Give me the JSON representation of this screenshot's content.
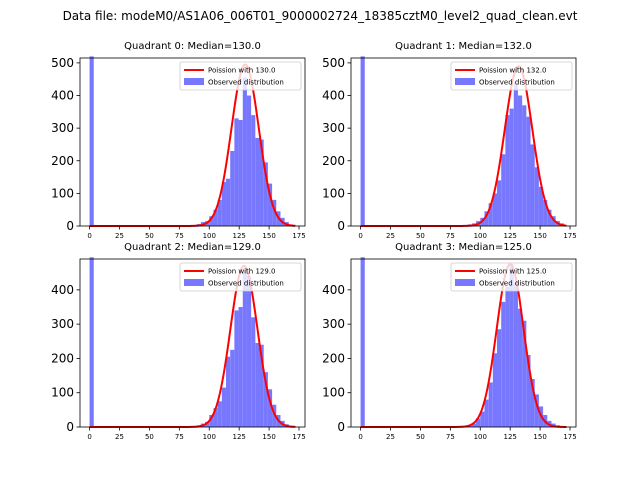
{
  "figure": {
    "title": "Data file: modeM0/AS1A06_006T01_9000002724_18385cztM0_level2_quad_clean.evt"
  },
  "colors": {
    "hist": "#7878ff",
    "hist_edge": "#0000ff",
    "fit": "#ff0000",
    "axis": "#000000"
  },
  "chart_data": [
    {
      "type": "bar",
      "title": "Quadrant 0: Median=130.0",
      "xlabel": "",
      "ylabel": "",
      "xlim": [
        -8,
        180
      ],
      "ylim": [
        0,
        515
      ],
      "xticks": [
        "0",
        "25",
        "50",
        "75",
        "100",
        "125",
        "150",
        "175"
      ],
      "yticks": [
        "0",
        "100",
        "200",
        "300",
        "400",
        "500"
      ],
      "bin_width": 3.5,
      "bins": [
        [
          0,
          520
        ],
        [
          86,
          3
        ],
        [
          89.5,
          6
        ],
        [
          93,
          12
        ],
        [
          96.5,
          15
        ],
        [
          100,
          30
        ],
        [
          103.5,
          50
        ],
        [
          107,
          80
        ],
        [
          110.5,
          135
        ],
        [
          114,
          145
        ],
        [
          117.5,
          230
        ],
        [
          121,
          330
        ],
        [
          124.5,
          325
        ],
        [
          128,
          455
        ],
        [
          131.5,
          400
        ],
        [
          135,
          340
        ],
        [
          138.5,
          270
        ],
        [
          142,
          265
        ],
        [
          145.5,
          195
        ],
        [
          149,
          130
        ],
        [
          152.5,
          80
        ],
        [
          156,
          45
        ],
        [
          159.5,
          25
        ],
        [
          163,
          12
        ],
        [
          166.5,
          5
        ]
      ],
      "fit_mean": 130.0,
      "fit_peak": 495,
      "legend": {
        "fit_label": "Poission with 130.0",
        "hist_label": "Observed distribution",
        "position": "upper right"
      }
    },
    {
      "type": "bar",
      "title": "Quadrant 1: Median=132.0",
      "xlabel": "",
      "ylabel": "",
      "xlim": [
        -8,
        180
      ],
      "ylim": [
        0,
        515
      ],
      "xticks": [
        "0",
        "25",
        "50",
        "75",
        "100",
        "125",
        "150",
        "175"
      ],
      "yticks": [
        "0",
        "100",
        "200",
        "300",
        "400",
        "500"
      ],
      "bin_width": 3.5,
      "bins": [
        [
          0,
          520
        ],
        [
          86,
          3
        ],
        [
          89.5,
          5
        ],
        [
          93,
          8
        ],
        [
          96.5,
          15
        ],
        [
          100,
          25
        ],
        [
          103.5,
          45
        ],
        [
          107,
          70
        ],
        [
          110.5,
          100
        ],
        [
          114,
          140
        ],
        [
          117.5,
          220
        ],
        [
          121,
          340
        ],
        [
          124.5,
          360
        ],
        [
          128,
          440
        ],
        [
          131.5,
          400
        ],
        [
          135,
          370
        ],
        [
          138.5,
          335
        ],
        [
          142,
          250
        ],
        [
          145.5,
          180
        ],
        [
          149,
          120
        ],
        [
          152.5,
          80
        ],
        [
          156,
          50
        ],
        [
          159.5,
          30
        ],
        [
          163,
          15
        ],
        [
          166.5,
          8
        ]
      ],
      "fit_mean": 132.0,
      "fit_peak": 490,
      "legend": {
        "fit_label": "Poission with 132.0",
        "hist_label": "Observed distribution",
        "position": "upper right"
      }
    },
    {
      "type": "bar",
      "title": "Quadrant 2: Median=129.0",
      "xlabel": "",
      "ylabel": "",
      "xlim": [
        -8,
        180
      ],
      "ylim": [
        0,
        490
      ],
      "xticks": [
        "0",
        "25",
        "50",
        "75",
        "100",
        "125",
        "150",
        "175"
      ],
      "yticks": [
        "0",
        "100",
        "200",
        "300",
        "400"
      ],
      "bin_width": 3.5,
      "bins": [
        [
          0,
          495
        ],
        [
          86,
          3
        ],
        [
          89.5,
          5
        ],
        [
          93,
          10
        ],
        [
          96.5,
          15
        ],
        [
          100,
          35
        ],
        [
          103.5,
          55
        ],
        [
          107,
          75
        ],
        [
          110.5,
          115
        ],
        [
          114,
          205
        ],
        [
          117.5,
          225
        ],
        [
          121,
          340
        ],
        [
          124.5,
          350
        ],
        [
          128,
          460
        ],
        [
          131.5,
          440
        ],
        [
          135,
          320
        ],
        [
          138.5,
          245
        ],
        [
          142,
          240
        ],
        [
          145.5,
          160
        ],
        [
          149,
          110
        ],
        [
          152.5,
          65
        ],
        [
          156,
          35
        ],
        [
          159.5,
          18
        ],
        [
          163,
          8
        ],
        [
          166.5,
          4
        ]
      ],
      "fit_mean": 129.0,
      "fit_peak": 470,
      "legend": {
        "fit_label": "Poission with 129.0",
        "hist_label": "Observed distribution",
        "position": "upper right"
      }
    },
    {
      "type": "bar",
      "title": "Quadrant 3: Median=125.0",
      "xlabel": "",
      "ylabel": "",
      "xlim": [
        -8,
        180
      ],
      "ylim": [
        0,
        490
      ],
      "xticks": [
        "0",
        "25",
        "50",
        "75",
        "100",
        "125",
        "150",
        "175"
      ],
      "yticks": [
        "0",
        "100",
        "200",
        "300",
        "400"
      ],
      "bin_width": 3.5,
      "bins": [
        [
          0,
          495
        ],
        [
          86,
          2
        ],
        [
          89.5,
          5
        ],
        [
          93,
          10
        ],
        [
          96.5,
          25
        ],
        [
          100,
          45
        ],
        [
          103.5,
          80
        ],
        [
          107,
          130
        ],
        [
          110.5,
          215
        ],
        [
          114,
          285
        ],
        [
          117.5,
          365
        ],
        [
          121,
          410
        ],
        [
          124.5,
          475
        ],
        [
          128,
          420
        ],
        [
          131.5,
          345
        ],
        [
          135,
          310
        ],
        [
          138.5,
          210
        ],
        [
          142,
          140
        ],
        [
          145.5,
          95
        ],
        [
          149,
          60
        ],
        [
          152.5,
          35
        ],
        [
          156,
          18
        ],
        [
          159.5,
          10
        ],
        [
          163,
          5
        ]
      ],
      "fit_mean": 125.0,
      "fit_peak": 475,
      "legend": {
        "fit_label": "Poission with 125.0",
        "hist_label": "Observed distribution",
        "position": "upper right"
      }
    }
  ]
}
